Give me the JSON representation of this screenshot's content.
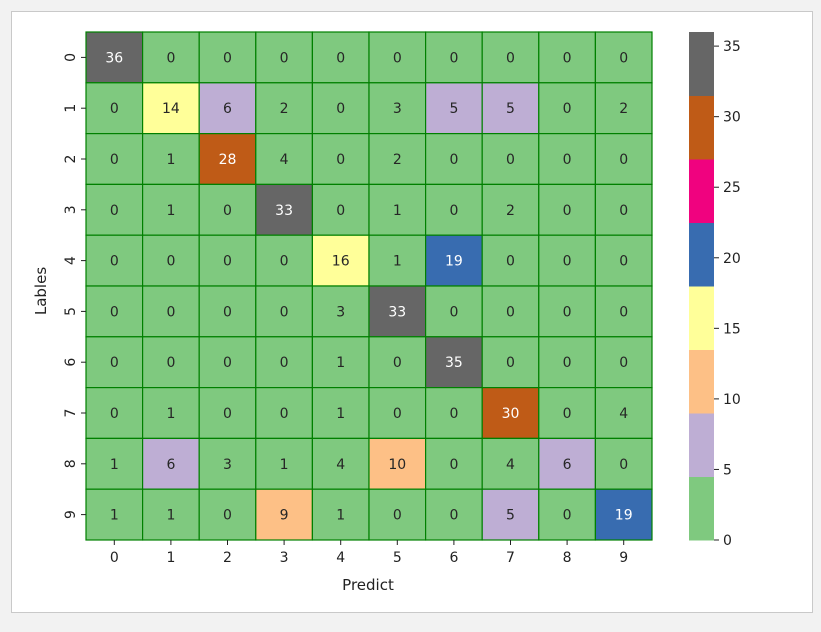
{
  "chart_data": {
    "type": "heatmap",
    "title": "",
    "xlabel": "Predict",
    "ylabel": "Lables",
    "x_categories": [
      "0",
      "1",
      "2",
      "3",
      "4",
      "5",
      "6",
      "7",
      "8",
      "9"
    ],
    "y_categories": [
      "0",
      "1",
      "2",
      "3",
      "4",
      "5",
      "6",
      "7",
      "8",
      "9"
    ],
    "matrix": [
      [
        36,
        0,
        0,
        0,
        0,
        0,
        0,
        0,
        0,
        0
      ],
      [
        0,
        14,
        6,
        2,
        0,
        3,
        5,
        5,
        0,
        2
      ],
      [
        0,
        1,
        28,
        4,
        0,
        2,
        0,
        0,
        0,
        0
      ],
      [
        0,
        1,
        0,
        33,
        0,
        1,
        0,
        2,
        0,
        0
      ],
      [
        0,
        0,
        0,
        0,
        16,
        1,
        19,
        0,
        0,
        0
      ],
      [
        0,
        0,
        0,
        0,
        3,
        33,
        0,
        0,
        0,
        0
      ],
      [
        0,
        0,
        0,
        0,
        1,
        0,
        35,
        0,
        0,
        0
      ],
      [
        0,
        1,
        0,
        0,
        1,
        0,
        0,
        30,
        0,
        4
      ],
      [
        1,
        6,
        3,
        1,
        4,
        10,
        0,
        4,
        6,
        0
      ],
      [
        1,
        1,
        0,
        9,
        1,
        0,
        0,
        5,
        0,
        19
      ]
    ],
    "colorbar": {
      "range": [
        0,
        36
      ],
      "ticks": [
        "0",
        "5",
        "10",
        "15",
        "20",
        "25",
        "30",
        "35"
      ],
      "colors": [
        "#7fc97f",
        "#beaed4",
        "#fdc086",
        "#ffff99",
        "#386cb0",
        "#f0027f",
        "#bf5b17",
        "#666666"
      ]
    },
    "cell_border_color": "#008000",
    "label_dark_color": "#262626",
    "label_light_color": "#ffffff"
  }
}
